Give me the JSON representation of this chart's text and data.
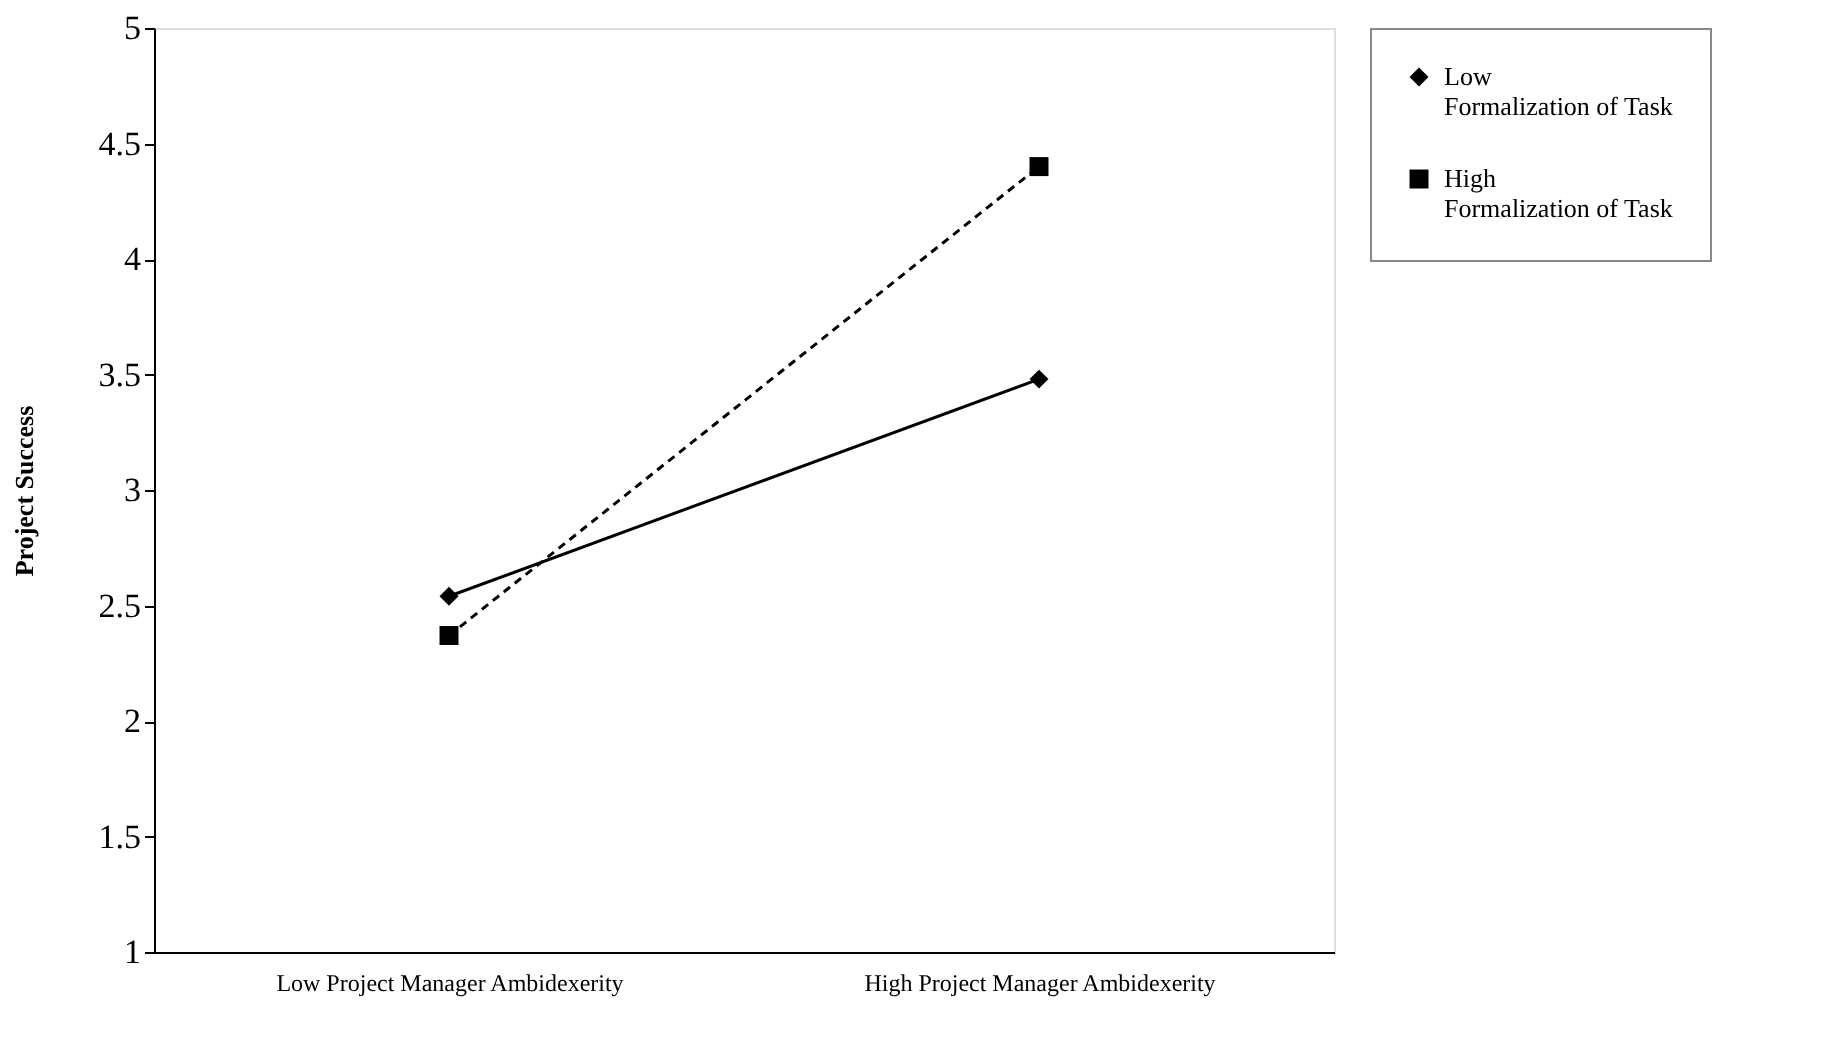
{
  "chart_data": {
    "type": "line",
    "ylabel": "Project Success",
    "categories": [
      "Low Project Manager Ambidexerity",
      "High Project Manager Ambidexerity"
    ],
    "series": [
      {
        "name": "Low\nFormalization of Task",
        "color": "#000000",
        "values": [
          2.54,
          3.48
        ],
        "marker": "diamond",
        "line_style": "solid"
      },
      {
        "name": "High\nFormalization of Task",
        "color": "#000000",
        "values": [
          2.37,
          4.4
        ],
        "marker": "square",
        "line_style": "dashed"
      }
    ],
    "ylim": [
      1,
      5
    ],
    "yticks": [
      1,
      1.5,
      2,
      2.5,
      3,
      3.5,
      4,
      4.5,
      5
    ],
    "grid": false,
    "legend": "right"
  }
}
